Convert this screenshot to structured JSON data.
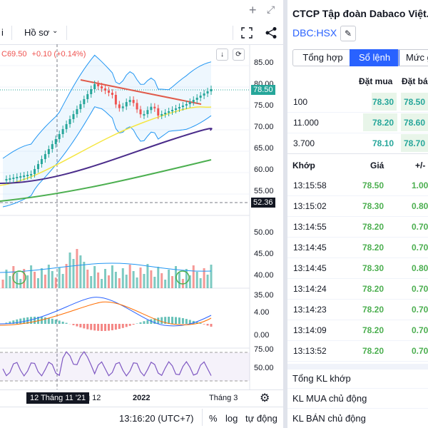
{
  "window": {
    "plus_icon": "plus-icon",
    "expand_icon": "expand-icon"
  },
  "toolbar": {
    "interval_suffix": "i",
    "profile_label": "Hồ sơ",
    "chevron": "chevron-down-icon",
    "fullscreen_icon": "fullscreen-icon",
    "share_icon": "share-icon"
  },
  "legend": {
    "close_value": "C69.50",
    "change": "+0.10 (+0.14%)"
  },
  "price_axis": {
    "labels": [
      "85.00",
      "80.00",
      "75.00",
      "70.00",
      "65.00",
      "60.00",
      "55.00",
      "50.00"
    ],
    "last_price": "78.50",
    "crosshair_price": "52.36",
    "volume_labels": [
      "45.00",
      "40.00",
      "35.00"
    ],
    "macd_labels": [
      "4.00",
      "0.00"
    ],
    "rsi_labels": [
      "75.00",
      "50.00"
    ]
  },
  "time_axis": {
    "crosshair_date": "12 Tháng 11 '21",
    "labels": [
      "g 12",
      "2022",
      "Tháng 3"
    ]
  },
  "bottom_bar": {
    "clock": "13:16:20 (UTC+7)",
    "percent": "%",
    "log": "log",
    "auto": "tự động"
  },
  "right_panel": {
    "company_title": "CTCP Tập đoàn Dabaco Việt...",
    "ticker": "DBC:HSX",
    "edit_icon": "pencil-icon",
    "tabs": [
      "Tổng hợp",
      "Sổ lệnh",
      "Mức g"
    ],
    "active_tab": 1,
    "book_headers": {
      "bid": "Đặt mua",
      "ask": "Đặt bá"
    },
    "book_rows": [
      {
        "qty": "100",
        "bid": "78.30",
        "ask": "78.50"
      },
      {
        "qty": "11.000",
        "bid": "78.20",
        "ask": "78.60"
      },
      {
        "qty": "3.700",
        "bid": "78.10",
        "ask": "78.70"
      }
    ],
    "trade_headers": {
      "time": "Khớp",
      "price": "Giá",
      "change": "+/-"
    },
    "trades": [
      {
        "time": "13:15:58",
        "price": "78.50",
        "change": "1.00"
      },
      {
        "time": "13:15:02",
        "price": "78.30",
        "change": "0.80"
      },
      {
        "time": "13:14:55",
        "price": "78.20",
        "change": "0.70"
      },
      {
        "time": "13:14:45",
        "price": "78.20",
        "change": "0.70"
      },
      {
        "time": "13:14:45",
        "price": "78.30",
        "change": "0.80"
      },
      {
        "time": "13:14:24",
        "price": "78.20",
        "change": "0.70"
      },
      {
        "time": "13:14:23",
        "price": "78.20",
        "change": "0.70"
      },
      {
        "time": "13:14:09",
        "price": "78.20",
        "change": "0.70"
      },
      {
        "time": "13:13:52",
        "price": "78.20",
        "change": "0.70"
      }
    ],
    "summary": [
      "Tổng KL khớp",
      "KL MUA chủ động",
      "KL BÁN chủ động"
    ]
  },
  "colors": {
    "up": "#26a69a",
    "down": "#ef5350",
    "accent": "#2962ff",
    "ma_yellow": "#f5e642",
    "ma_purple": "#4a2c8a",
    "ma_green": "#4caf50",
    "trend_red": "#e05a4a",
    "last_price_bg": "#26a69a",
    "crosshair_bg": "#131722"
  }
}
